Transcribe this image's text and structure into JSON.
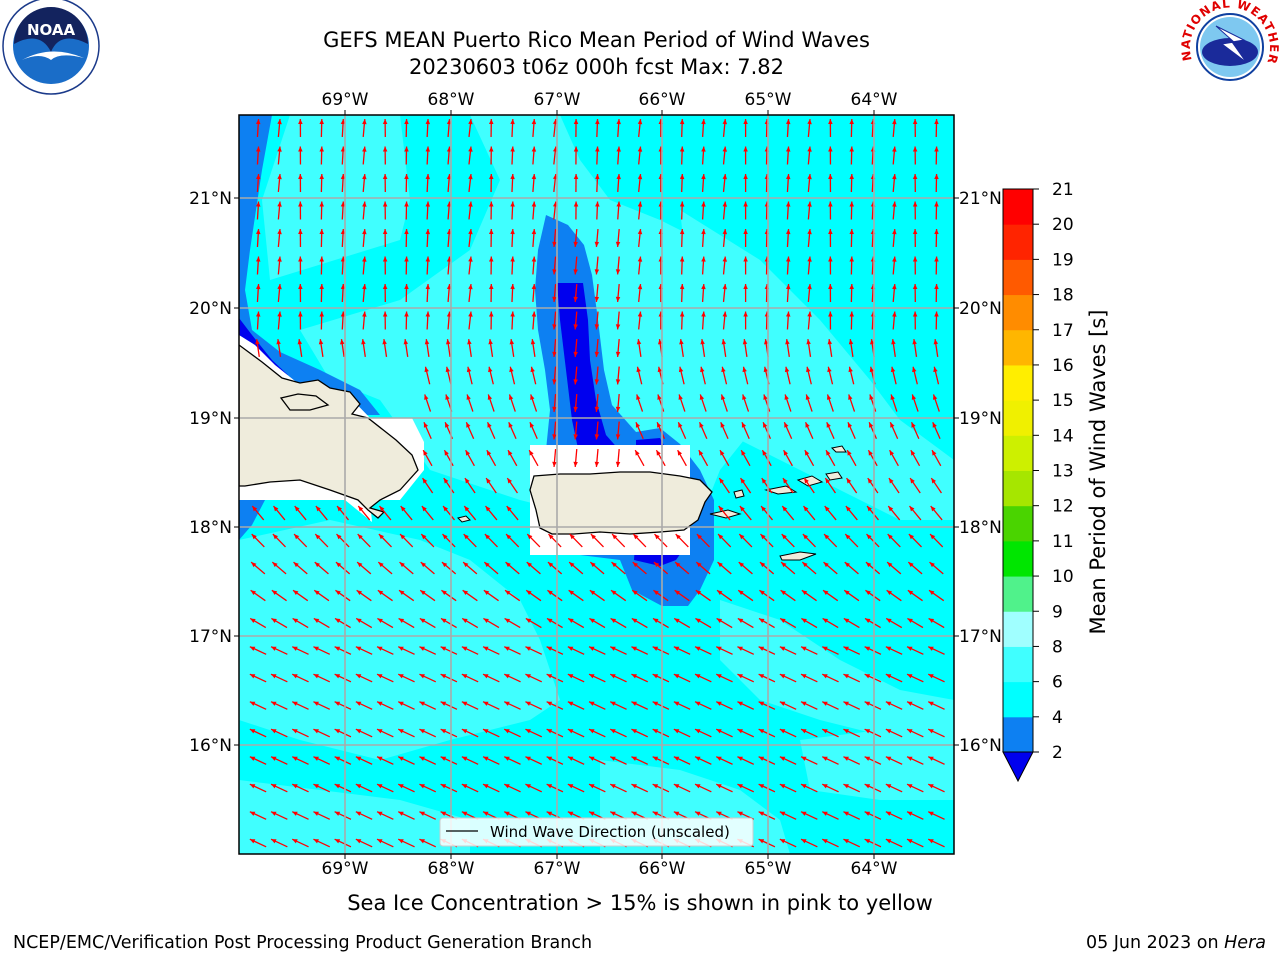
{
  "title_line1": "GEFS MEAN Puerto Rico Mean Period of Wind Waves",
  "title_line2": "20230603 t06z 000h fcst   Max: 7.82",
  "note": "Sea Ice Concentration > 15% is shown in pink to yellow",
  "footer_left": "NCEP/EMC/Verification Post Processing Product Generation Branch",
  "footer_date": "05 Jun 2023 on ",
  "footer_machine": "Hera",
  "legend_label": "Wind Wave Direction (unscaled)",
  "colorbar_label": "Mean Period of Wind Waves [s]",
  "colorbar_ticks": [
    "2",
    "4",
    "6",
    "8",
    "9",
    "10",
    "11",
    "12",
    "13",
    "14",
    "15",
    "16",
    "17",
    "18",
    "19",
    "20",
    "21"
  ],
  "lon_labels": [
    "69°W",
    "68°W",
    "67°W",
    "66°W",
    "65°W",
    "64°W"
  ],
  "lat_labels": [
    "21°N",
    "20°N",
    "19°N",
    "18°N",
    "17°N",
    "16°N"
  ],
  "colorbar_colors": [
    "#0000ee",
    "#0d80f2",
    "#00ffff",
    "#40ffff",
    "#a0ffff",
    "#50f28b",
    "#00e600",
    "#4ad400",
    "#a6e600",
    "#cdf000",
    "#f0f000",
    "#ffee00",
    "#ffb600",
    "#ff8c00",
    "#ff5a00",
    "#ff2400",
    "#ff0000"
  ],
  "logos": {
    "left": {
      "acronym": "NOAA",
      "ring_text": "NATIONAL OCEANIC AND ATMOSPHERIC ADMINISTRATION · U.S. DEPARTMENT OF COMMERCE"
    },
    "right": {
      "ring_text": "NATIONAL WEATHER SERVICE"
    }
  },
  "map_colors": {
    "land": "#efecdc",
    "ocean_4_6": "#00ffff",
    "ocean_6_8": "#40ffff",
    "ocean_2_4": "#0d80f2",
    "ocean_lt2": "#0000ee",
    "arrows": "#ff0000"
  }
}
